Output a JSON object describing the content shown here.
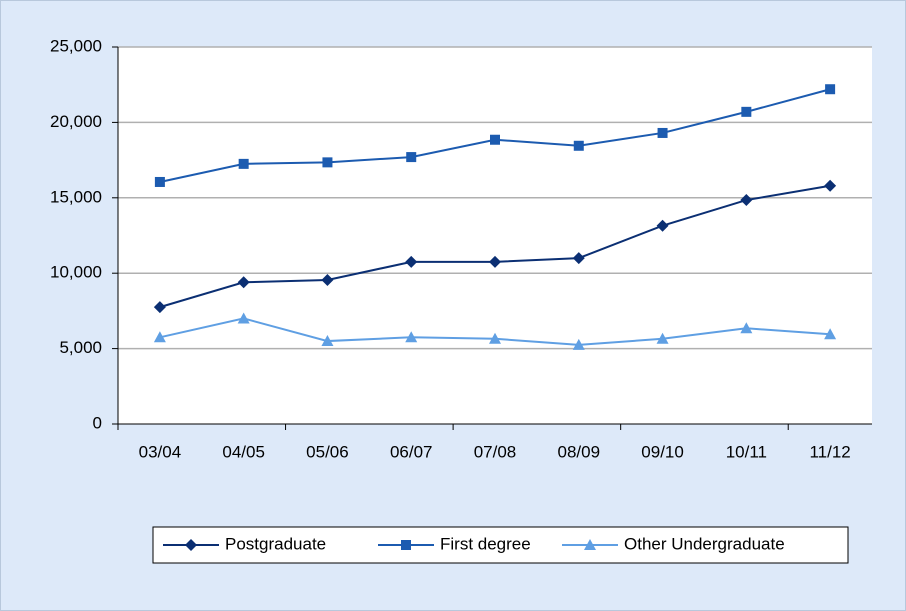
{
  "chart_data": {
    "type": "line",
    "categories": [
      "03/04",
      "04/05",
      "05/06",
      "06/07",
      "07/08",
      "08/09",
      "09/10",
      "10/11",
      "11/12"
    ],
    "series": [
      {
        "name": "Postgraduate",
        "color": "#0b2f73",
        "marker": "diamond",
        "values": [
          7750,
          9400,
          9550,
          10750,
          10750,
          11000,
          13150,
          14850,
          15800
        ]
      },
      {
        "name": "First degree",
        "color": "#1c5bb0",
        "marker": "square",
        "values": [
          16050,
          17250,
          17350,
          17700,
          18850,
          18450,
          19300,
          20700,
          22200
        ]
      },
      {
        "name": "Other Undergraduate",
        "color": "#5f9fe3",
        "marker": "triangle",
        "values": [
          5750,
          7000,
          5500,
          5750,
          5650,
          5250,
          5650,
          6350,
          5950
        ]
      }
    ],
    "ylim": [
      0,
      25000
    ],
    "yticks": [
      0,
      {
        "value": 5000,
        "label": "5,000"
      },
      {
        "value": 10000,
        "label": "10,000"
      },
      {
        "value": 15000,
        "label": "15,000"
      },
      {
        "value": 20000,
        "label": "20,000"
      },
      {
        "value": 25000,
        "label": "25,000"
      }
    ],
    "grid": true,
    "legend": "bottom"
  }
}
